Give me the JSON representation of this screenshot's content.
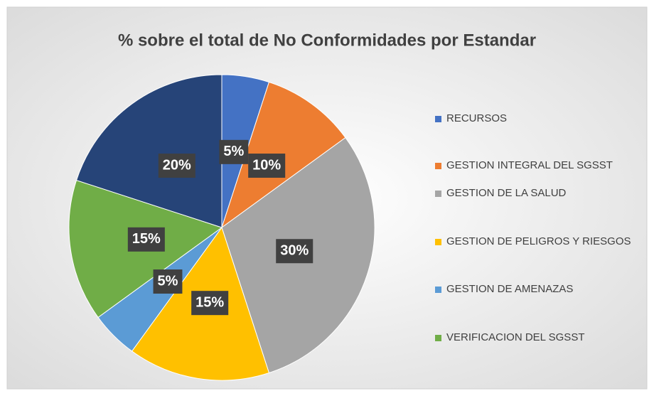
{
  "chart_data": {
    "type": "pie",
    "title": "% sobre el total de No Conformidades por Estandar",
    "categories": [
      "RECURSOS",
      "GESTION INTEGRAL DEL SGSST",
      "GESTION DE LA SALUD",
      "GESTION DE PELIGROS Y RIESGOS",
      "GESTION DE AMENAZAS",
      "VERIFICACION DEL SGSST",
      null
    ],
    "values": [
      5,
      10,
      30,
      15,
      5,
      15,
      20
    ],
    "value_labels": [
      "5%",
      "10%",
      "30%",
      "15%",
      "5%",
      "15%",
      "20%"
    ],
    "colors": [
      "#4472c4",
      "#ed7d31",
      "#a5a5a5",
      "#ffc000",
      "#5b9bd5",
      "#70ad47",
      "#264478"
    ],
    "legend": "right"
  }
}
